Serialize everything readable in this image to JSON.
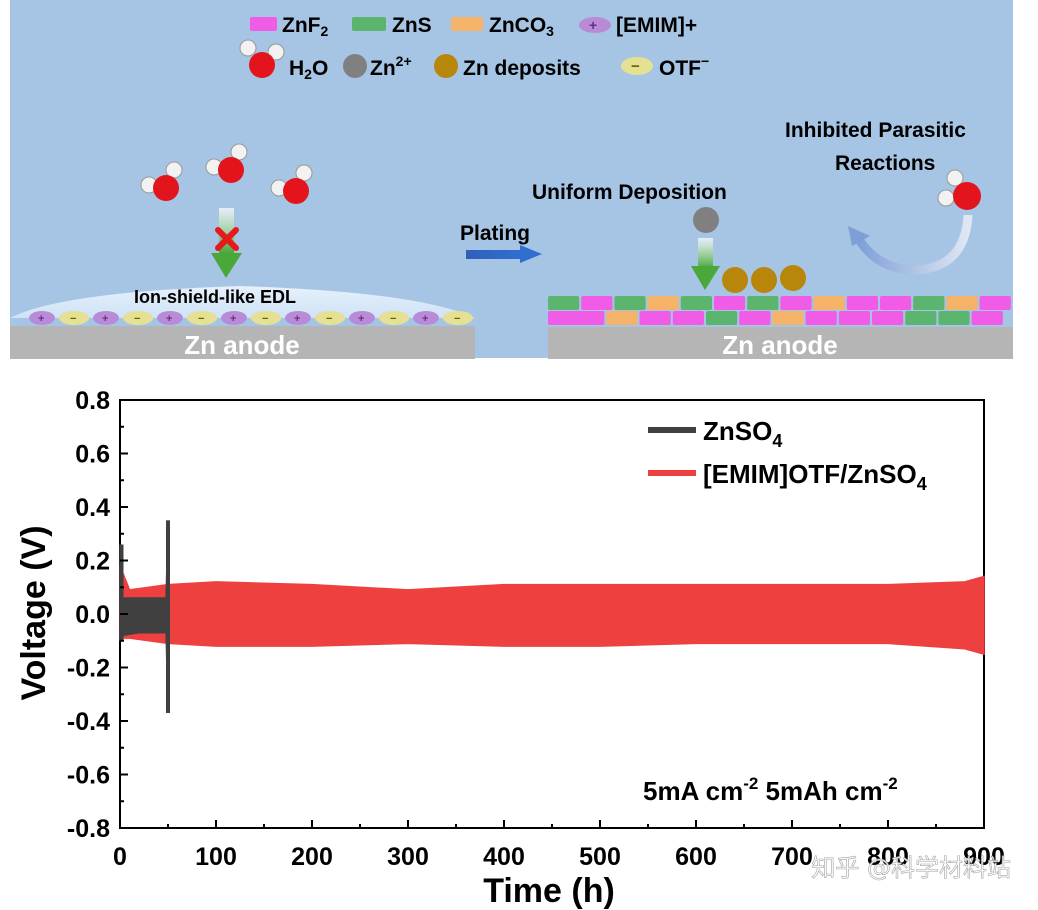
{
  "schematic": {
    "legend": {
      "znf2": "ZnF",
      "znf2_sub": "2",
      "zns": "ZnS",
      "znco3": "ZnCO",
      "znco3_sub": "3",
      "emim": "[EMIM]+",
      "h2o_pre": "H",
      "h2o_sub": "2",
      "h2o_post": "O",
      "zn2_base": "Zn",
      "zn2_sup": "2+",
      "zn_deposits": "Zn deposits",
      "otf_base": "OTF",
      "otf_sup": "−"
    },
    "edl_label": "Ion-shield-like EDL",
    "plating_label": "Plating",
    "uniform_deposition": "Uniform Deposition",
    "inhibited_line1": "Inhibited Parasitic",
    "inhibited_line2": "Reactions",
    "anode_left": "Zn anode",
    "anode_right": "Zn anode",
    "colors": {
      "background": "#a6c4e3",
      "znf2": "#f05ce6",
      "zns": "#5cb56e",
      "znco3": "#f5b36a",
      "emim": "#b98bd6",
      "water_o": "#e3141b",
      "zn2": "#808080",
      "zn_deposit": "#b8860b",
      "otf": "#e6e093",
      "anode": "#b5b5b5"
    }
  },
  "chart_data": {
    "type": "line",
    "xlabel": "Time (h)",
    "ylabel": "Voltage (V)",
    "xlim": [
      0,
      900
    ],
    "ylim": [
      -0.8,
      0.8
    ],
    "xticks": [
      0,
      100,
      200,
      300,
      400,
      500,
      600,
      700,
      800,
      900
    ],
    "yticks": [
      "-0.8",
      "-0.6",
      "-0.4",
      "-0.2",
      "0.0",
      "0.2",
      "0.4",
      "0.6",
      "0.8"
    ],
    "annotation_base": "5mA cm",
    "annotation_sup1": "-2",
    "annotation_mid": " 5mAh cm",
    "annotation_sup2": "-2",
    "legend_position": "top-right",
    "series": [
      {
        "name_base": "ZnSO",
        "name_sub": "4",
        "color": "#404040",
        "envelope": [
          {
            "x": 0,
            "upper": 0.26,
            "lower": -0.1
          },
          {
            "x": 2,
            "upper": 0.06,
            "lower": -0.08
          },
          {
            "x": 20,
            "upper": 0.06,
            "lower": -0.07
          },
          {
            "x": 48,
            "upper": 0.06,
            "lower": -0.07
          },
          {
            "x": 50,
            "upper": 0.35,
            "lower": -0.37
          }
        ]
      },
      {
        "name_base": "[EMIM]OTF/ZnSO",
        "name_sub": "4",
        "color": "#ef4040",
        "envelope": [
          {
            "x": 0,
            "upper": 0.18,
            "lower": -0.09
          },
          {
            "x": 10,
            "upper": 0.09,
            "lower": -0.09
          },
          {
            "x": 50,
            "upper": 0.11,
            "lower": -0.11
          },
          {
            "x": 100,
            "upper": 0.12,
            "lower": -0.12
          },
          {
            "x": 200,
            "upper": 0.11,
            "lower": -0.12
          },
          {
            "x": 300,
            "upper": 0.09,
            "lower": -0.11
          },
          {
            "x": 400,
            "upper": 0.11,
            "lower": -0.12
          },
          {
            "x": 500,
            "upper": 0.11,
            "lower": -0.12
          },
          {
            "x": 600,
            "upper": 0.11,
            "lower": -0.11
          },
          {
            "x": 700,
            "upper": 0.11,
            "lower": -0.11
          },
          {
            "x": 800,
            "upper": 0.11,
            "lower": -0.11
          },
          {
            "x": 880,
            "upper": 0.12,
            "lower": -0.13
          },
          {
            "x": 900,
            "upper": 0.14,
            "lower": -0.15
          }
        ]
      }
    ]
  },
  "watermark": "知乎 @科学材料站"
}
